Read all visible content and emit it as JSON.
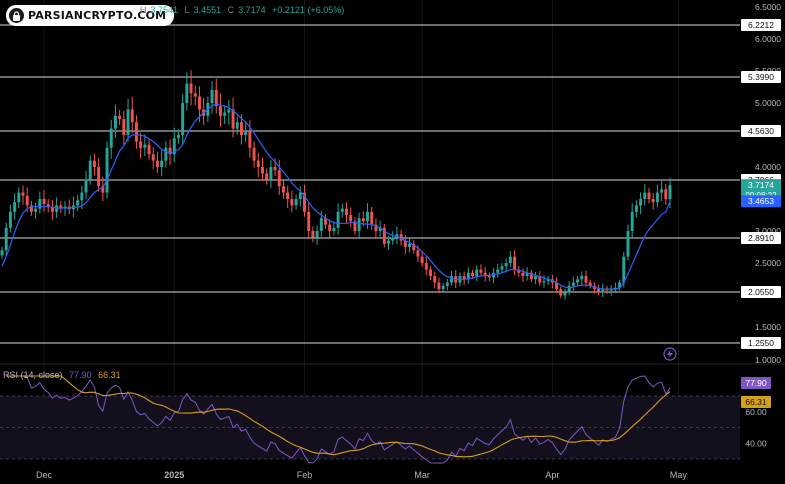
{
  "watermark": {
    "text": "PARSIANCRYPTO.COM",
    "logo_icon": "lock-icon"
  },
  "ohlc": {
    "high_label": "H",
    "high": "3.7541",
    "low_label": "L",
    "low": "3.4551",
    "close_label": "C",
    "close": "3.7174",
    "change": "+0.2121 (+6.05%)"
  },
  "chart_data": {
    "type": "candlestick",
    "price_axis_ticks": [
      "6.5000",
      "6.0000",
      "5.5000",
      "5.0000",
      "4.0000",
      "3.0000",
      "2.5000",
      "1.5000",
      "1.0000"
    ],
    "levels": [
      {
        "value": 6.2212,
        "label": "6.2212"
      },
      {
        "value": 5.399,
        "label": "5.3990"
      },
      {
        "value": 4.563,
        "label": "4.5630"
      },
      {
        "value": 3.7966,
        "label": "3.7966"
      },
      {
        "value": 2.891,
        "label": "2.8910"
      },
      {
        "value": 2.055,
        "label": "2.0550"
      },
      {
        "value": 1.255,
        "label": "1.2550"
      }
    ],
    "last_price": {
      "value": 3.7174,
      "label": "3.7174",
      "countdown": "09:08:22"
    },
    "ma_value": {
      "value": 3.4653,
      "label": "3.4653"
    },
    "x_ticks": [
      {
        "label": "Dec",
        "index": 10
      },
      {
        "label": "2025",
        "index": 41
      },
      {
        "label": "Feb",
        "index": 72
      },
      {
        "label": "Mar",
        "index": 100
      },
      {
        "label": "Apr",
        "index": 131
      },
      {
        "label": "May",
        "index": 161
      }
    ],
    "closes": [
      2.7,
      3.05,
      3.3,
      3.45,
      3.6,
      3.55,
      3.4,
      3.3,
      3.35,
      3.5,
      3.42,
      3.38,
      3.3,
      3.4,
      3.35,
      3.38,
      3.34,
      3.4,
      3.48,
      3.6,
      3.8,
      4.1,
      4.0,
      3.7,
      3.6,
      4.3,
      4.6,
      4.8,
      4.75,
      4.5,
      4.9,
      4.7,
      4.4,
      4.3,
      4.35,
      4.2,
      4.1,
      4.0,
      4.1,
      4.3,
      4.2,
      4.45,
      4.5,
      5.0,
      5.3,
      5.15,
      5.1,
      4.9,
      4.8,
      5.0,
      5.2,
      4.95,
      4.8,
      4.85,
      4.9,
      4.6,
      4.7,
      4.5,
      4.55,
      4.3,
      4.1,
      4.0,
      3.9,
      3.8,
      4.0,
      3.95,
      3.7,
      3.6,
      3.5,
      3.4,
      3.5,
      3.6,
      3.3,
      3.0,
      2.9,
      3.0,
      3.2,
      3.1,
      3.0,
      3.05,
      3.3,
      3.35,
      3.25,
      3.15,
      3.0,
      3.2,
      3.15,
      3.3,
      3.1,
      3.0,
      3.05,
      2.8,
      2.85,
      2.9,
      2.95,
      2.85,
      2.75,
      2.8,
      2.7,
      2.6,
      2.5,
      2.4,
      2.3,
      2.2,
      2.1,
      2.15,
      2.2,
      2.3,
      2.2,
      2.3,
      2.25,
      2.35,
      2.3,
      2.4,
      2.35,
      2.3,
      2.28,
      2.35,
      2.4,
      2.45,
      2.5,
      2.6,
      2.4,
      2.35,
      2.3,
      2.35,
      2.25,
      2.3,
      2.2,
      2.22,
      2.25,
      2.2,
      2.1,
      2.0,
      2.05,
      2.15,
      2.2,
      2.25,
      2.3,
      2.2,
      2.15,
      2.1,
      2.05,
      2.1,
      2.08,
      2.1,
      2.12,
      2.2,
      2.6,
      3.0,
      3.3,
      3.4,
      3.5,
      3.6,
      3.5,
      3.45,
      3.6,
      3.65,
      3.5,
      3.7174
    ],
    "ma": [
      2.45,
      2.6,
      2.78,
      2.98,
      3.15,
      3.28,
      3.35,
      3.38,
      3.38,
      3.38,
      3.38,
      3.38,
      3.37,
      3.36,
      3.36,
      3.36,
      3.36,
      3.37,
      3.37,
      3.39,
      3.44,
      3.52,
      3.6,
      3.65,
      3.68,
      3.8,
      3.95,
      4.1,
      4.25,
      4.33,
      4.45,
      4.5,
      4.5,
      4.5,
      4.48,
      4.44,
      4.4,
      4.34,
      4.28,
      4.24,
      4.22,
      4.24,
      4.27,
      4.35,
      4.5,
      4.62,
      4.72,
      4.79,
      4.85,
      4.9,
      4.96,
      4.98,
      4.97,
      4.95,
      4.93,
      4.88,
      4.82,
      4.76,
      4.7,
      4.62,
      4.53,
      4.43,
      4.33,
      4.23,
      4.15,
      4.08,
      4.0,
      3.92,
      3.84,
      3.75,
      3.68,
      3.62,
      3.55,
      3.45,
      3.36,
      3.3,
      3.25,
      3.2,
      3.16,
      3.13,
      3.12,
      3.12,
      3.12,
      3.13,
      3.13,
      3.12,
      3.11,
      3.11,
      3.1,
      3.08,
      3.05,
      3.0,
      2.96,
      2.93,
      2.91,
      2.88,
      2.85,
      2.82,
      2.78,
      2.74,
      2.68,
      2.61,
      2.54,
      2.46,
      2.39,
      2.33,
      2.29,
      2.27,
      2.25,
      2.25,
      2.25,
      2.26,
      2.27,
      2.29,
      2.3,
      2.31,
      2.31,
      2.32,
      2.33,
      2.35,
      2.37,
      2.4,
      2.4,
      2.39,
      2.37,
      2.35,
      2.33,
      2.31,
      2.29,
      2.27,
      2.25,
      2.23,
      2.2,
      2.16,
      2.13,
      2.12,
      2.13,
      2.15,
      2.16,
      2.16,
      2.15,
      2.13,
      2.11,
      2.1,
      2.1,
      2.1,
      2.1,
      2.11,
      2.2,
      2.33,
      2.48,
      2.63,
      2.78,
      2.92,
      3.03,
      3.1,
      3.18,
      3.26,
      3.3,
      3.4653
    ],
    "rsi": {
      "name": "RSI (14, close)",
      "value": "77.90",
      "ma_value": "66.31",
      "bands": [
        30,
        50,
        70
      ],
      "axis_ticks": [
        "60.00",
        "40.00"
      ]
    },
    "colors": {
      "up": "#26a69a",
      "down": "#ef5350",
      "ma": "#2962ff",
      "rsi": "#7e57c2",
      "rsi_ma": "#d4a017"
    }
  },
  "icons": {
    "alert": "lightning-icon"
  }
}
